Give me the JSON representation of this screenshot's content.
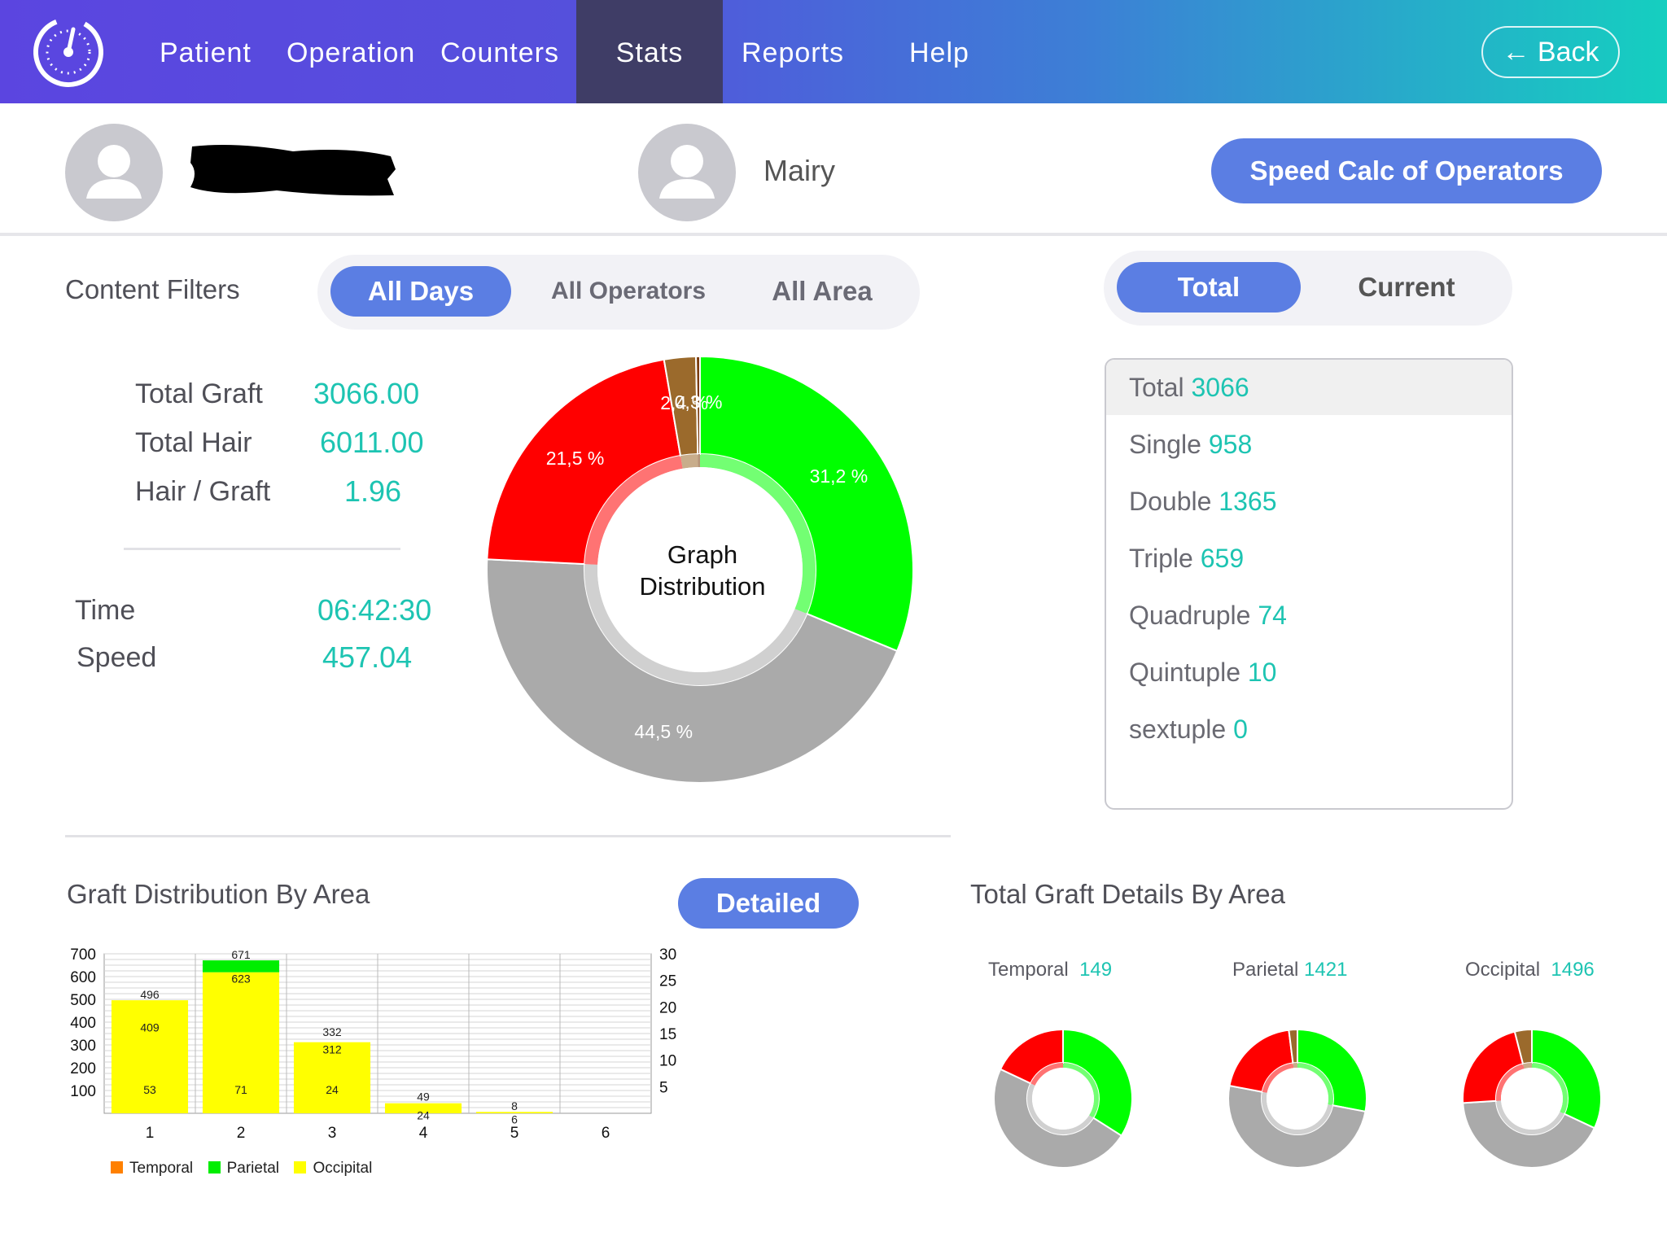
{
  "nav": {
    "items": [
      "Patient",
      "Operation",
      "Counters",
      "Stats",
      "Reports",
      "Help"
    ],
    "active": "Stats",
    "back_label": "Back"
  },
  "users": {
    "operator_name": "Mairy"
  },
  "speed_button_label": "Speed Calc of Operators",
  "filters": {
    "label": "Content Filters",
    "options": [
      "All Days",
      "All Operators",
      "All Area"
    ],
    "selected": "All Days"
  },
  "view_toggle": {
    "options": [
      "Total",
      "Current"
    ],
    "selected": "Total"
  },
  "summary": {
    "total_graft_label": "Total Graft",
    "total_graft": "3066.00",
    "total_hair_label": "Total Hair",
    "total_hair": "6011.00",
    "ratio_label": "Hair / Graft",
    "ratio": "1.96",
    "time_label": "Time",
    "time": "06:42:30",
    "speed_label": "Speed",
    "speed": "457.04"
  },
  "donut": {
    "center_line1": "Graph",
    "center_line2": "Distribution",
    "labels": [
      "31,2 %",
      "44,5 %",
      "21,5 %",
      "2,4 %",
      "0,3 %"
    ]
  },
  "counts": [
    {
      "label": "Total",
      "value": "3066"
    },
    {
      "label": "Single",
      "value": "958"
    },
    {
      "label": "Double",
      "value": "1365"
    },
    {
      "label": "Triple",
      "value": "659"
    },
    {
      "label": "Quadruple",
      "value": "74"
    },
    {
      "label": "Quintuple",
      "value": "10"
    },
    {
      "label": "sextuple",
      "value": "0"
    }
  ],
  "graft_by_area_title": "Graft Distribution By Area",
  "detailed_label": "Detailed",
  "total_by_area_title": "Total Graft Details By Area",
  "areas": [
    {
      "name": "Temporal",
      "value": "149"
    },
    {
      "name": "Parietal",
      "value": "1421"
    },
    {
      "name": "Occipital",
      "value": "1496"
    }
  ],
  "colors": {
    "accent": "#5b7ee3",
    "value_teal": "#1dc4b2",
    "single_green": "#00ff00",
    "double_gray": "#aaaaaa",
    "triple_red": "#ff0000",
    "quadruple_brown": "#9b6a2c",
    "temporal_orange": "#ff8000",
    "parietal_green": "#00ee00",
    "occipital_yellow": "#ffff00"
  },
  "chart_data": [
    {
      "type": "pie",
      "title": "",
      "categories": [
        "Single",
        "Double",
        "Triple",
        "Quadruple",
        "Quintuple"
      ],
      "values": [
        31.2,
        44.5,
        21.5,
        2.4,
        0.3
      ],
      "value_labels": [
        "31,2 %",
        "44,5 %",
        "21,5 %",
        "2,4 %",
        "0,3 %"
      ],
      "center_text": "Graph Distribution",
      "hole": true
    },
    {
      "type": "bar",
      "title": "",
      "stacked": true,
      "categories": [
        "1",
        "2",
        "3",
        "4",
        "5",
        "6"
      ],
      "series": [
        {
          "name": "Temporal",
          "values": [
            0,
            0,
            0,
            0,
            0,
            0
          ]
        },
        {
          "name": "Parietal",
          "values": [
            0,
            52,
            0,
            0,
            0,
            0
          ]
        },
        {
          "name": "Occipital",
          "values": [
            496,
            619,
            312,
            44,
            6,
            0
          ]
        }
      ],
      "data_labels": [
        {
          "x": "1",
          "texts": [
            "496",
            "409",
            "53"
          ]
        },
        {
          "x": "2",
          "texts": [
            "671",
            "623",
            "71"
          ]
        },
        {
          "x": "3",
          "texts": [
            "332",
            "312",
            "24"
          ]
        },
        {
          "x": "4",
          "texts": [
            "49",
            "24"
          ]
        },
        {
          "x": "5",
          "texts": [
            "8",
            "6"
          ]
        }
      ],
      "ylim": [
        0,
        700
      ],
      "y_ticks": [
        100,
        200,
        300,
        400,
        500,
        600,
        700
      ],
      "y2lim": [
        0,
        30
      ],
      "y2_ticks": [
        5,
        10,
        15,
        20,
        25,
        30
      ],
      "grid": true,
      "legend": "bottom-left"
    },
    {
      "type": "pie",
      "title": "Temporal",
      "categories": [
        "Single",
        "Double",
        "Triple",
        "Quadruple"
      ],
      "values": [
        34,
        48,
        18,
        0
      ],
      "hole": true
    },
    {
      "type": "pie",
      "title": "Parietal",
      "categories": [
        "Single",
        "Double",
        "Triple",
        "Quadruple"
      ],
      "values": [
        28,
        50,
        20,
        2
      ],
      "hole": true
    },
    {
      "type": "pie",
      "title": "Occipital",
      "categories": [
        "Single",
        "Double",
        "Triple",
        "Quadruple"
      ],
      "values": [
        32,
        42,
        22,
        4
      ],
      "hole": true
    }
  ]
}
